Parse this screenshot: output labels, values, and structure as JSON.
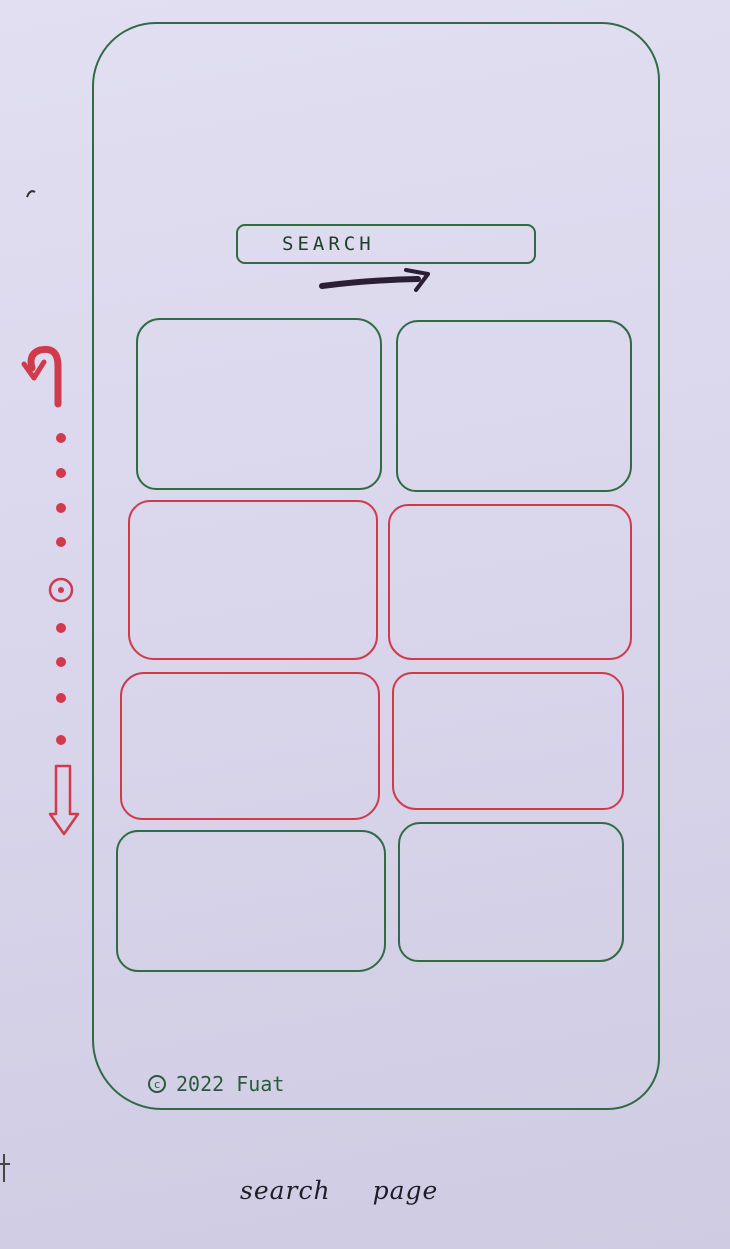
{
  "search": {
    "label": "SEARCH"
  },
  "grid": {
    "rows": [
      {
        "cards": [
          "green",
          "green"
        ]
      },
      {
        "cards": [
          "red",
          "red"
        ]
      },
      {
        "cards": [
          "red",
          "red"
        ]
      },
      {
        "cards": [
          "green",
          "green"
        ]
      }
    ]
  },
  "footer": {
    "text": "2022 Fuat"
  },
  "caption": {
    "word1": "search",
    "word2": "page"
  },
  "colors": {
    "green": "#2f6b45",
    "red": "#d13a4c",
    "ink": "#1e1e26",
    "paper": "#d9d6ec"
  },
  "icons": {
    "scroll_up": "curved-arrow-up-icon",
    "scroll_down": "arrow-down-icon",
    "scroll_thumb": "circle-dot-icon",
    "footer": "copyright-icon"
  }
}
